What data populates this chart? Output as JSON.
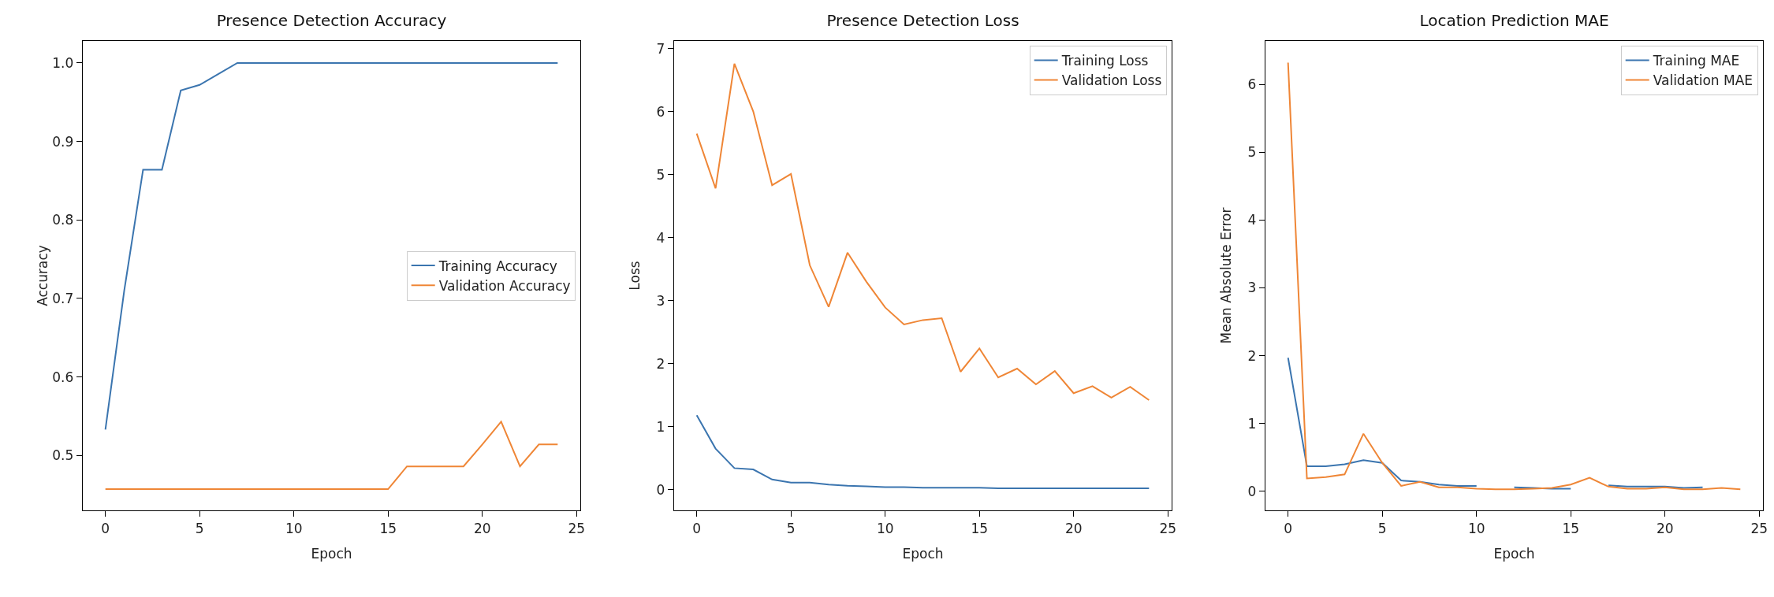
{
  "chart_data": [
    {
      "type": "line",
      "title": "Presence Detection Accuracy",
      "xlabel": "Epoch",
      "ylabel": "Accuracy",
      "x": [
        0,
        1,
        2,
        3,
        4,
        5,
        6,
        7,
        8,
        9,
        10,
        11,
        12,
        13,
        14,
        15,
        16,
        17,
        18,
        19,
        20,
        21,
        22,
        23,
        24
      ],
      "xlim": [
        -1.2,
        25.2
      ],
      "xticks": [
        0,
        5,
        10,
        15,
        20,
        25
      ],
      "ylim": [
        0.43,
        1.028
      ],
      "yticks": [
        0.5,
        0.6,
        0.7,
        0.8,
        0.9,
        {
          "value": 1,
          "label": "1.0"
        }
      ],
      "grid": false,
      "legend": "right",
      "marker": "none",
      "line_style": "solid",
      "series": [
        {
          "name": "Training Accuracy",
          "color": "#3b75af",
          "values": [
            0.533,
            0.71,
            0.864,
            0.864,
            0.965,
            0.972,
            0.986,
            1.0,
            1.0,
            1.0,
            1.0,
            1.0,
            1.0,
            1.0,
            1.0,
            1.0,
            1.0,
            1.0,
            1.0,
            1.0,
            1.0,
            1.0,
            1.0,
            1.0,
            1.0
          ]
        },
        {
          "name": "Validation Accuracy",
          "color": "#ef8636",
          "values": [
            0.457,
            0.457,
            0.457,
            0.457,
            0.457,
            0.457,
            0.457,
            0.457,
            0.457,
            0.457,
            0.457,
            0.457,
            0.457,
            0.457,
            0.457,
            0.457,
            0.486,
            0.486,
            0.486,
            0.486,
            0.514,
            0.543,
            0.486,
            0.514,
            0.514
          ]
        }
      ]
    },
    {
      "type": "line",
      "title": "Presence Detection Loss",
      "xlabel": "Epoch",
      "ylabel": "Loss",
      "x": [
        0,
        1,
        2,
        3,
        4,
        5,
        6,
        7,
        8,
        9,
        10,
        11,
        12,
        13,
        14,
        15,
        16,
        17,
        18,
        19,
        20,
        21,
        22,
        23,
        24
      ],
      "xlim": [
        -1.2,
        25.2
      ],
      "xticks": [
        0,
        5,
        10,
        15,
        20,
        25
      ],
      "ylim": [
        -0.33,
        7.12
      ],
      "yticks": [
        0,
        1,
        2,
        3,
        4,
        5,
        6,
        7
      ],
      "grid": false,
      "legend": "top right",
      "marker": "none",
      "line_style": "solid",
      "series": [
        {
          "name": "Training Loss",
          "color": "#3b75af",
          "values": [
            1.18,
            0.65,
            0.34,
            0.32,
            0.16,
            0.11,
            0.11,
            0.08,
            0.06,
            0.05,
            0.04,
            0.04,
            0.03,
            0.03,
            0.03,
            0.03,
            0.02,
            0.02,
            0.02,
            0.02,
            0.02,
            0.02,
            0.02,
            0.02,
            0.02
          ]
        },
        {
          "name": "Validation Loss",
          "color": "#ef8636",
          "values": [
            5.65,
            4.78,
            6.76,
            6.0,
            4.83,
            5.01,
            3.56,
            2.9,
            3.76,
            3.3,
            2.89,
            2.62,
            2.69,
            2.72,
            1.87,
            2.24,
            1.78,
            1.92,
            1.67,
            1.88,
            1.53,
            1.64,
            1.46,
            1.63,
            1.42
          ]
        }
      ]
    },
    {
      "type": "line",
      "title": "Location Prediction MAE",
      "xlabel": "Epoch",
      "ylabel": "Mean Absolute Error",
      "x": [
        0,
        1,
        2,
        3,
        4,
        5,
        6,
        7,
        8,
        9,
        10,
        11,
        12,
        13,
        14,
        15,
        16,
        17,
        18,
        19,
        20,
        21,
        22,
        23,
        24
      ],
      "xlim": [
        -1.2,
        25.2
      ],
      "xticks": [
        0,
        5,
        10,
        15,
        20,
        25
      ],
      "ylim": [
        -0.28,
        6.64
      ],
      "yticks": [
        0,
        1,
        2,
        3,
        4,
        5,
        6
      ],
      "grid": false,
      "legend": "top right",
      "marker": "none",
      "line_style": "solid",
      "series": [
        {
          "name": "Training MAE",
          "color": "#3b75af",
          "values": [
            1.97,
            0.37,
            0.37,
            0.4,
            0.46,
            0.42,
            0.16,
            0.14,
            0.1,
            0.08,
            0.08,
            null,
            0.06,
            0.05,
            0.04,
            0.04,
            null,
            0.09,
            0.07,
            0.07,
            0.07,
            0.05,
            0.06,
            null,
            null
          ]
        },
        {
          "name": "Validation MAE",
          "color": "#ef8636",
          "values": [
            6.32,
            0.19,
            0.21,
            0.25,
            0.85,
            0.42,
            0.08,
            0.14,
            0.06,
            0.06,
            0.04,
            0.03,
            0.03,
            0.04,
            0.05,
            0.1,
            0.2,
            0.07,
            0.04,
            0.04,
            0.06,
            0.03,
            0.03,
            0.05,
            0.03
          ]
        }
      ]
    }
  ]
}
